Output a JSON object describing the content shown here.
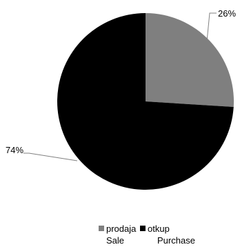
{
  "chart_data": {
    "type": "pie",
    "categories": [
      "prodaja\nSale",
      "otkup\nPurchase"
    ],
    "values": [
      26,
      74
    ],
    "data_labels": [
      "26%",
      "74%"
    ],
    "series": [
      {
        "name": "prodaja Sale",
        "label_line1": "prodaja",
        "label_line2": "Sale",
        "value": 26,
        "color": "#7f7f7f"
      },
      {
        "name": "otkup Purchase",
        "label_line1": "otkup",
        "label_line2": "Purchase",
        "value": 74,
        "color": "#000000"
      }
    ],
    "legend_placement": "bottom",
    "start_angle": "12 o'clock, clockwise"
  },
  "colors": {
    "background": "#ffffff",
    "leader_line": "#808080"
  }
}
